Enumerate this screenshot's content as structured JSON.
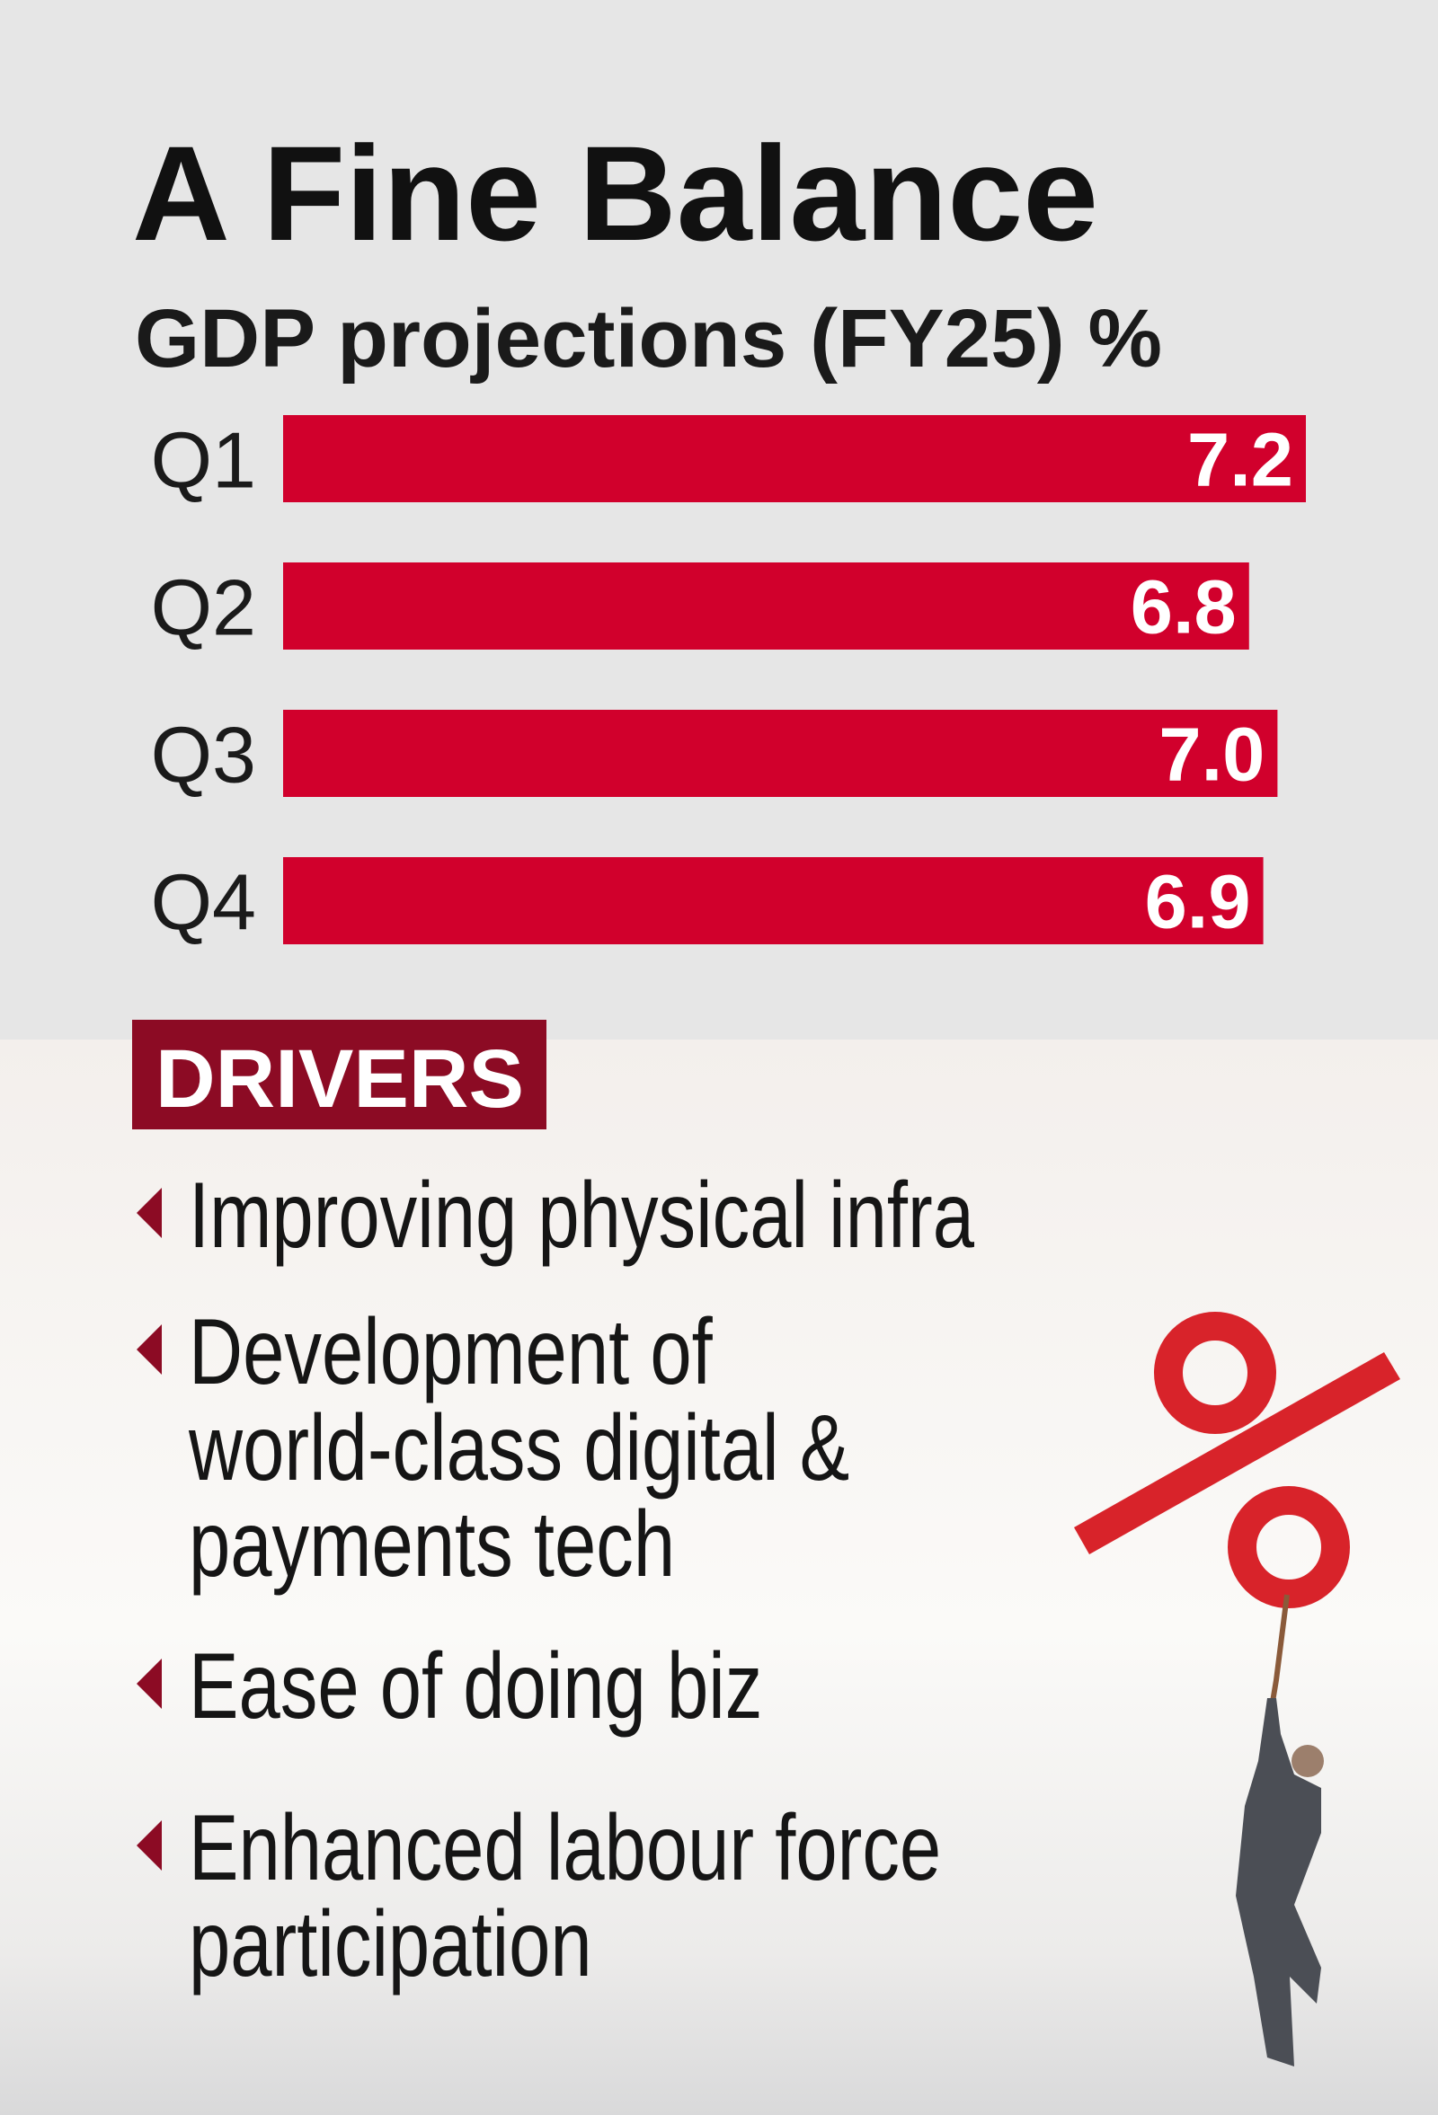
{
  "chart_data": {
    "type": "bar",
    "orientation": "horizontal",
    "title": "A Fine Balance",
    "subtitle": "GDP projections (FY25) %",
    "categories": [
      "Q1",
      "Q2",
      "Q3",
      "Q4"
    ],
    "values": [
      7.2,
      6.8,
      7.0,
      6.9
    ],
    "value_labels": [
      "7.2",
      "6.8",
      "7.0",
      "6.9"
    ],
    "color": "#d1002c"
  },
  "drivers": {
    "heading": "DRIVERS",
    "items": [
      [
        "Improving physical infra"
      ],
      [
        "Development of",
        "world-class digital &",
        "payments tech"
      ],
      [
        "Ease of doing biz"
      ],
      [
        "Enhanced labour force",
        "participation"
      ]
    ]
  }
}
